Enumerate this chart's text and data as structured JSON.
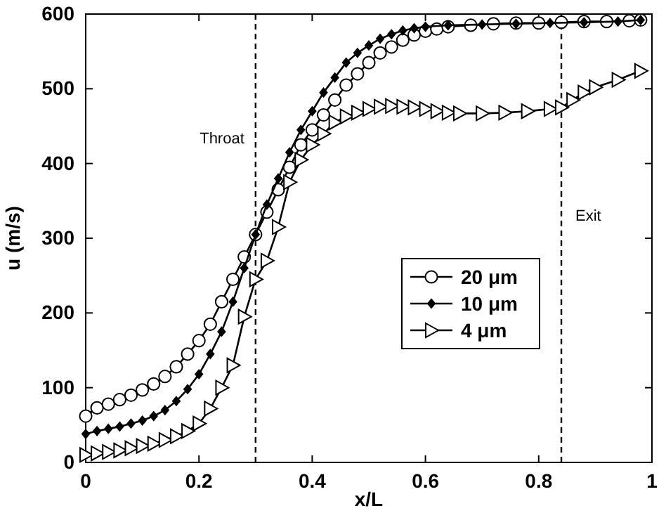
{
  "chart_data": {
    "type": "line",
    "xlabel": "x/L",
    "ylabel": "u (m/s)",
    "xlim": [
      0,
      1
    ],
    "ylim": [
      0,
      600
    ],
    "xticks": [
      0,
      0.2,
      0.4,
      0.6,
      0.8,
      1
    ],
    "yticks": [
      0,
      100,
      200,
      300,
      400,
      500,
      600
    ],
    "grid": false,
    "legend": "right",
    "line_style": "solid",
    "series": [
      {
        "name": "20 μm",
        "color": "#000000",
        "marker": "circle",
        "x": [
          0,
          0.02,
          0.04,
          0.06,
          0.08,
          0.1,
          0.12,
          0.14,
          0.16,
          0.18,
          0.2,
          0.22,
          0.24,
          0.26,
          0.28,
          0.3,
          0.32,
          0.34,
          0.36,
          0.38,
          0.4,
          0.42,
          0.44,
          0.46,
          0.48,
          0.5,
          0.52,
          0.54,
          0.56,
          0.58,
          0.6,
          0.62,
          0.64,
          0.68,
          0.72,
          0.76,
          0.8,
          0.84,
          0.88,
          0.92,
          0.96,
          0.98
        ],
        "values": [
          62,
          73,
          78,
          84,
          90,
          97,
          105,
          115,
          128,
          145,
          163,
          185,
          215,
          245,
          275,
          305,
          335,
          365,
          395,
          425,
          445,
          465,
          485,
          505,
          520,
          535,
          548,
          556,
          565,
          572,
          577,
          580,
          583,
          585,
          587,
          588,
          588,
          589,
          590,
          590,
          591,
          592
        ]
      },
      {
        "name": "10 μm",
        "color": "#000000",
        "marker": "diamond",
        "x": [
          0,
          0.02,
          0.04,
          0.06,
          0.08,
          0.1,
          0.12,
          0.14,
          0.16,
          0.18,
          0.2,
          0.22,
          0.24,
          0.26,
          0.28,
          0.3,
          0.32,
          0.34,
          0.36,
          0.38,
          0.4,
          0.42,
          0.44,
          0.46,
          0.48,
          0.5,
          0.52,
          0.54,
          0.56,
          0.58,
          0.6,
          0.64,
          0.7,
          0.76,
          0.82,
          0.88,
          0.94,
          0.98
        ],
        "values": [
          38,
          42,
          45,
          48,
          52,
          56,
          62,
          70,
          82,
          98,
          118,
          145,
          175,
          215,
          260,
          305,
          345,
          380,
          415,
          445,
          470,
          495,
          515,
          535,
          548,
          558,
          567,
          573,
          578,
          581,
          583,
          585,
          586,
          587,
          588,
          589,
          590,
          592
        ]
      },
      {
        "name": "4 μm",
        "color": "#000000",
        "marker": "triangle",
        "x": [
          0,
          0.02,
          0.04,
          0.06,
          0.08,
          0.1,
          0.12,
          0.14,
          0.16,
          0.18,
          0.2,
          0.22,
          0.24,
          0.26,
          0.28,
          0.3,
          0.32,
          0.34,
          0.36,
          0.38,
          0.4,
          0.42,
          0.44,
          0.46,
          0.48,
          0.5,
          0.52,
          0.54,
          0.56,
          0.58,
          0.6,
          0.62,
          0.64,
          0.66,
          0.7,
          0.74,
          0.78,
          0.82,
          0.84,
          0.86,
          0.88,
          0.9,
          0.94,
          0.98
        ],
        "values": [
          10,
          12,
          14,
          16,
          19,
          22,
          25,
          30,
          35,
          42,
          52,
          72,
          100,
          130,
          195,
          245,
          270,
          315,
          375,
          405,
          425,
          440,
          455,
          463,
          468,
          473,
          476,
          477,
          476,
          475,
          473,
          470,
          468,
          467,
          467,
          468,
          470,
          473,
          475,
          485,
          495,
          502,
          512,
          524
        ]
      }
    ],
    "ref_lines": [
      {
        "axis": "x",
        "value": 0.3,
        "label": "Throat",
        "line_style": "dashed"
      },
      {
        "axis": "x",
        "value": 0.84,
        "label": "Exit",
        "line_style": "dashed"
      }
    ]
  }
}
